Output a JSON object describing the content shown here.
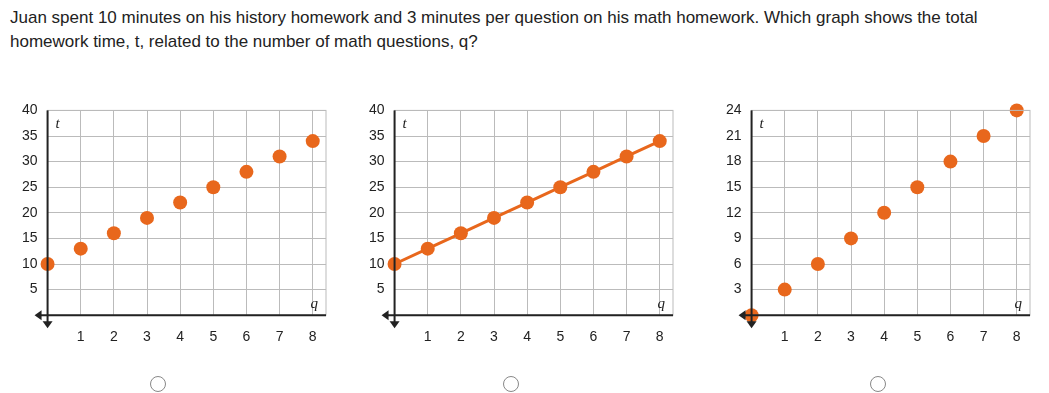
{
  "question": "Juan spent 10 minutes on his history homework and 3 minutes per question on his math homework. Which graph shows the total homework time, t, related to the number of math questions, q?",
  "chart_data": [
    {
      "type": "scatter",
      "x_label": "q",
      "y_label": "t",
      "x": [
        0,
        1,
        2,
        3,
        4,
        5,
        6,
        7,
        8
      ],
      "values": [
        10,
        13,
        16,
        19,
        22,
        25,
        28,
        31,
        34
      ],
      "color": "#e8671c",
      "marker": "circle",
      "grid": true,
      "xlim": [
        0,
        8.4
      ],
      "xticks": [
        1,
        2,
        3,
        4,
        5,
        6,
        7,
        8
      ],
      "ylim": [
        0,
        40
      ],
      "yticks": [
        5,
        10,
        15,
        20,
        25,
        30,
        35,
        40
      ]
    },
    {
      "type": "line",
      "x_label": "q",
      "y_label": "t",
      "x": [
        0,
        1,
        2,
        3,
        4,
        5,
        6,
        7,
        8
      ],
      "values": [
        10,
        13,
        16,
        19,
        22,
        25,
        28,
        31,
        34
      ],
      "color": "#e8671c",
      "marker": "circle",
      "line_style": "solid",
      "grid": true,
      "xlim": [
        0,
        8.4
      ],
      "xticks": [
        1,
        2,
        3,
        4,
        5,
        6,
        7,
        8
      ],
      "ylim": [
        0,
        40
      ],
      "yticks": [
        5,
        10,
        15,
        20,
        25,
        30,
        35,
        40
      ]
    },
    {
      "type": "scatter",
      "x_label": "q",
      "y_label": "t",
      "x": [
        0,
        1,
        2,
        3,
        4,
        5,
        6,
        7,
        8
      ],
      "values": [
        0,
        3,
        6,
        9,
        12,
        15,
        18,
        21,
        24
      ],
      "color": "#e8671c",
      "marker": "circle",
      "grid": true,
      "xlim": [
        0,
        8.4
      ],
      "xticks": [
        1,
        2,
        3,
        4,
        5,
        6,
        7,
        8
      ],
      "ylim": [
        0,
        24
      ],
      "yticks": [
        3,
        6,
        9,
        12,
        15,
        18,
        21,
        24
      ]
    }
  ]
}
